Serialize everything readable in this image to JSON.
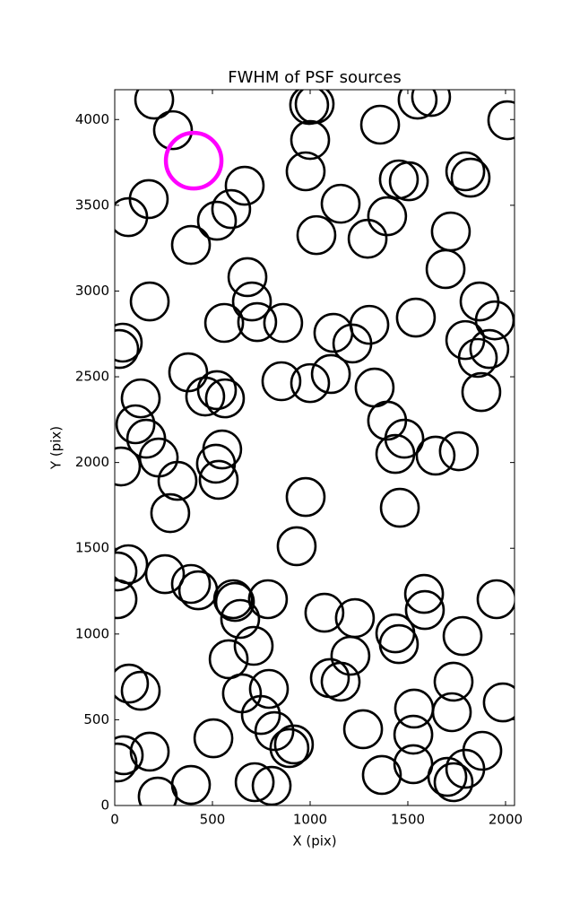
{
  "chart_data": {
    "type": "scatter",
    "title": "FWHM of PSF sources",
    "x_label": "X (pix)",
    "y_label": "Y (pix)",
    "xlim": [
      0,
      2046
    ],
    "ylim": [
      0,
      4174
    ],
    "xticks": [
      0,
      500,
      1000,
      1500,
      2000
    ],
    "yticks": [
      0,
      500,
      1000,
      1500,
      2000,
      2500,
      3000,
      3500,
      4000
    ],
    "series": [
      {
        "color": "#000000",
        "x": [
          202,
          298,
          174,
          69,
          390,
          523,
          596,
          665,
          179,
          41,
          23,
          679,
          702,
          729,
          560,
          862,
          1023,
          995,
          1000,
          977,
          1032,
          1156,
          1294,
          1394,
          1358,
          1454,
          1505,
          1550,
          1619,
          2009,
          1794,
          1821,
          1720,
          1693,
          1867,
          1945,
          1541,
          1303,
          1216,
          1119,
          1106,
          1000,
          853,
          376,
          463,
          523,
          564,
          133,
          106,
          161,
          32,
          225,
          321,
          518,
          550,
          532,
          284,
          977,
          931,
          1330,
          1394,
          1482,
          1436,
          1642,
          1761,
          1459,
          1794,
          1858,
          1876,
          1917,
          14,
          69,
          14,
          257,
          390,
          427,
          606,
          615,
          642,
          784,
          711,
          583,
          651,
          748,
          789,
          817,
          894,
          917,
          716,
          803,
          505,
          390,
          220,
          179,
          46,
          14,
          73,
          133,
          1073,
          1229,
          1101,
          1156,
          1206,
          1271,
          1367,
          1436,
          1454,
          1583,
          1587,
          1780,
          1734,
          1725,
          1528,
          1532,
          1528,
          1702,
          1734,
          1794,
          1881,
          1986,
          1954
        ],
        "values": [
          4116,
          3938,
          3536,
          3431,
          3269,
          3410,
          3478,
          3614,
          2939,
          2699,
          2662,
          3081,
          2939,
          2819,
          2814,
          2814,
          4090,
          4085,
          3881,
          3698,
          3326,
          3509,
          3305,
          3436,
          3970,
          3651,
          3640,
          4116,
          4132,
          3996,
          3698,
          3661,
          3347,
          3128,
          2939,
          2829,
          2845,
          2803,
          2694,
          2756,
          2516,
          2463,
          2474,
          2526,
          2385,
          2422,
          2374,
          2374,
          2223,
          2139,
          1977,
          2029,
          1893,
          1993,
          2076,
          1899,
          1705,
          1799,
          1512,
          2437,
          2244,
          2139,
          2050,
          2040,
          2066,
          1736,
          2714,
          2610,
          2411,
          2662,
          1365,
          1407,
          1203,
          1349,
          1292,
          1255,
          1203,
          1187,
          1088,
          1203,
          931,
          853,
          654,
          528,
          680,
          434,
          335,
          356,
          136,
          115,
          392,
          120,
          52,
          314,
          293,
          251,
          711,
          669,
          1124,
          1093,
          743,
          722,
          873,
          445,
          178,
          1004,
          941,
          1234,
          1140,
          988,
          722,
          544,
          413,
          565,
          241,
          167,
          136,
          214,
          319,
          601,
          1203
        ]
      },
      {
        "color": "#ff00ff",
        "x": [
          404
        ],
        "values": [
          3760
        ]
      }
    ]
  }
}
